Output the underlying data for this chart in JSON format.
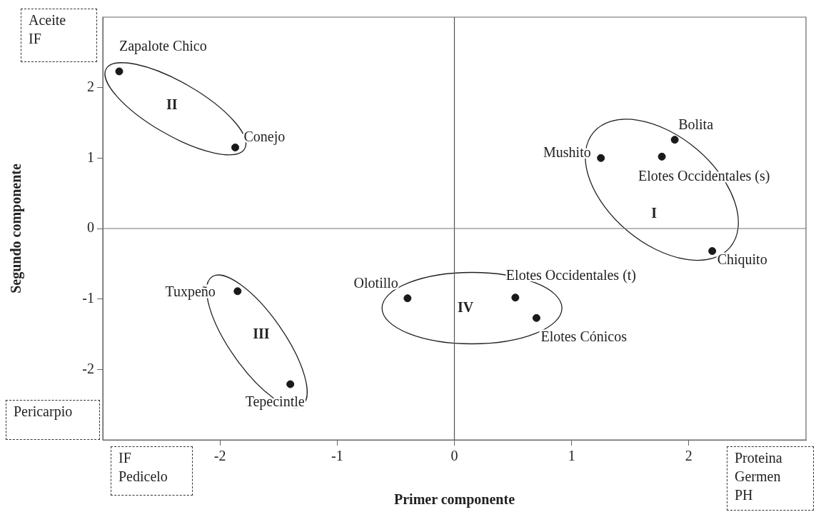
{
  "chart_data": {
    "type": "scatter",
    "xlabel": "Primer componente",
    "ylabel": "Segundo componente",
    "x": [
      -2.86,
      -1.87,
      1.25,
      1.77,
      1.88,
      2.2,
      -1.85,
      -1.4,
      -0.4,
      0.52,
      0.7
    ],
    "values": [
      2.23,
      1.15,
      1.0,
      1.02,
      1.26,
      -0.32,
      -0.89,
      -2.21,
      -0.99,
      -0.98,
      -1.27
    ],
    "color": "#1a1a1a",
    "marker": "circle",
    "xlim": [
      -3,
      3
    ],
    "ylim": [
      -3,
      3
    ],
    "xticks": [
      -2,
      -1,
      0,
      1,
      2
    ],
    "yticks": [
      -2,
      -1,
      0,
      1,
      2
    ],
    "grid": false,
    "legend": false,
    "ref_lines": [
      {
        "axis": "x",
        "value": 0
      },
      {
        "axis": "y",
        "value": 0
      }
    ],
    "annotations": [
      {
        "text": "Zapalote Chico",
        "x": -2.86,
        "y": 2.23
      },
      {
        "text": "Conejo",
        "x": -1.87,
        "y": 1.15
      },
      {
        "text": "Mushito",
        "x": 1.25,
        "y": 1.0
      },
      {
        "text": "Elotes Occidentales (s)",
        "x": 1.77,
        "y": 1.02
      },
      {
        "text": "Bolita",
        "x": 1.88,
        "y": 1.26
      },
      {
        "text": "Chiquito",
        "x": 2.2,
        "y": -0.32
      },
      {
        "text": "Tuxpeño",
        "x": -1.85,
        "y": -0.89
      },
      {
        "text": "Tepecintle",
        "x": -1.4,
        "y": -2.21
      },
      {
        "text": "Olotillo",
        "x": -0.4,
        "y": -0.99
      },
      {
        "text": "Elotes Occidentales (t)",
        "x": 0.52,
        "y": -0.98
      },
      {
        "text": "Elotes Cónicos",
        "x": 0.7,
        "y": -1.27
      },
      "I",
      "II",
      "III",
      "IV",
      "Aceite\nIF",
      "Pericarpio",
      "IF\nPedicelo",
      "Proteina\nGermen\nPH"
    ]
  }
}
